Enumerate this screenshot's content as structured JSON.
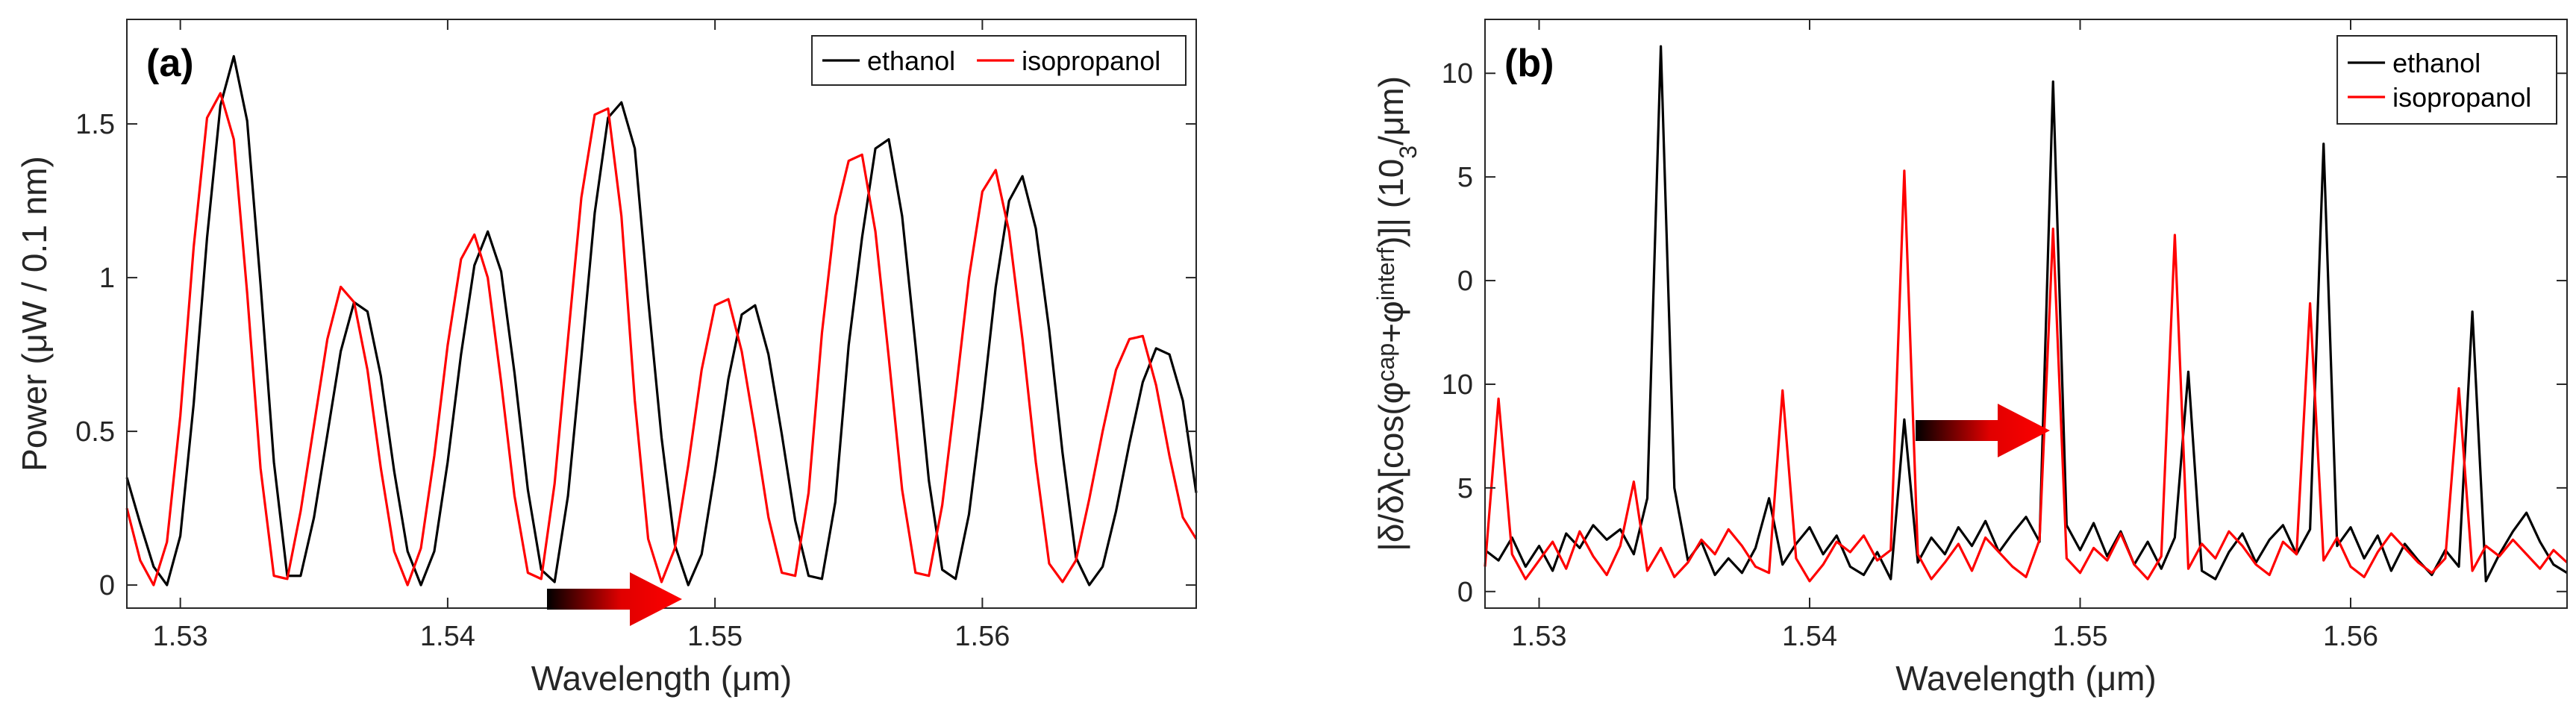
{
  "chart_data": [
    {
      "type": "line",
      "panel_label": "(a)",
      "xlabel": "Wavelength (μm)",
      "ylabel": "Power (μW / 0.1 nm)",
      "xlim": [
        1.528,
        1.568
      ],
      "ylim": [
        -0.075,
        1.84
      ],
      "xticks": [
        1.53,
        1.54,
        1.55,
        1.56
      ],
      "yticks": [
        0,
        0.5,
        1,
        1.5
      ],
      "legend": "upper right",
      "x": [
        1.528,
        1.5285,
        1.529,
        1.5295,
        1.53,
        1.5305,
        1.531,
        1.5315,
        1.532,
        1.5325,
        1.533,
        1.5335,
        1.534,
        1.5345,
        1.535,
        1.5355,
        1.536,
        1.5365,
        1.537,
        1.5375,
        1.538,
        1.5385,
        1.539,
        1.5395,
        1.54,
        1.5405,
        1.541,
        1.5415,
        1.542,
        1.5425,
        1.543,
        1.5435,
        1.544,
        1.5445,
        1.545,
        1.5455,
        1.546,
        1.5465,
        1.547,
        1.5475,
        1.548,
        1.5485,
        1.549,
        1.5495,
        1.55,
        1.5505,
        1.551,
        1.5515,
        1.552,
        1.5525,
        1.553,
        1.5535,
        1.554,
        1.5545,
        1.555,
        1.5555,
        1.556,
        1.5565,
        1.557,
        1.5575,
        1.558,
        1.5585,
        1.559,
        1.5595,
        1.56,
        1.5605,
        1.561,
        1.5615,
        1.562,
        1.5625,
        1.563,
        1.5635,
        1.564,
        1.5645,
        1.565,
        1.5655,
        1.566,
        1.5665,
        1.567,
        1.5675,
        1.568
      ],
      "series": [
        {
          "name": "ethanol",
          "color": "#000000",
          "values": [
            0.35,
            0.2,
            0.06,
            0,
            0.16,
            0.59,
            1.13,
            1.56,
            1.72,
            1.51,
            0.98,
            0.4,
            0.03,
            0.03,
            0.22,
            0.49,
            0.76,
            0.92,
            0.89,
            0.68,
            0.37,
            0.11,
            0,
            0.11,
            0.4,
            0.75,
            1.04,
            1.15,
            1.02,
            0.69,
            0.31,
            0.05,
            0.01,
            0.29,
            0.74,
            1.21,
            1.52,
            1.57,
            1.42,
            0.93,
            0.48,
            0.13,
            0,
            0.1,
            0.37,
            0.67,
            0.88,
            0.91,
            0.75,
            0.49,
            0.21,
            0.03,
            0.02,
            0.27,
            0.78,
            1.13,
            1.42,
            1.45,
            1.2,
            0.78,
            0.34,
            0.05,
            0.02,
            0.23,
            0.58,
            0.97,
            1.25,
            1.33,
            1.16,
            0.83,
            0.43,
            0.09,
            0,
            0.06,
            0.24,
            0.46,
            0.66,
            0.77,
            0.75,
            0.6,
            0.3
          ]
        },
        {
          "name": "isopropanol",
          "color": "#ff0000",
          "values": [
            0.25,
            0.08,
            0,
            0.14,
            0.55,
            1.1,
            1.52,
            1.6,
            1.45,
            0.95,
            0.38,
            0.03,
            0.02,
            0.24,
            0.52,
            0.8,
            0.97,
            0.92,
            0.7,
            0.38,
            0.11,
            0,
            0.12,
            0.42,
            0.78,
            1.06,
            1.14,
            1,
            0.66,
            0.29,
            0.04,
            0.02,
            0.33,
            0.8,
            1.26,
            1.53,
            1.55,
            1.2,
            0.6,
            0.15,
            0.01,
            0.12,
            0.39,
            0.7,
            0.91,
            0.93,
            0.76,
            0.5,
            0.22,
            0.04,
            0.03,
            0.3,
            0.82,
            1.2,
            1.38,
            1.4,
            1.15,
            0.74,
            0.31,
            0.04,
            0.03,
            0.26,
            0.62,
            1,
            1.28,
            1.35,
            1.15,
            0.8,
            0.4,
            0.07,
            0.01,
            0.08,
            0.28,
            0.5,
            0.7,
            0.8,
            0.81,
            0.65,
            0.42,
            0.22,
            0.15
          ]
        }
      ]
    },
    {
      "type": "line",
      "panel_label": "(b)",
      "xlabel": "Wavelength (μm)",
      "ylabel": [
        "|δ/δλ[cos(φ",
        "cap",
        "+φ",
        "interf",
        ")]| (10",
        "3",
        "/μm)"
      ],
      "xlim": [
        1.528,
        1.568
      ],
      "ylim": [
        -0.8,
        27.6
      ],
      "xticks": [
        1.53,
        1.54,
        1.55,
        1.56
      ],
      "yticks": [
        0,
        5,
        10,
        {
          "value": 15,
          "label": "0"
        },
        {
          "value": 20,
          "label": "5"
        },
        {
          "value": 25,
          "label": "10"
        }
      ],
      "legend": "upper right",
      "x": [
        1.528,
        1.5285,
        1.529,
        1.5295,
        1.53,
        1.5305,
        1.531,
        1.5315,
        1.532,
        1.5325,
        1.533,
        1.5335,
        1.534,
        1.5345,
        1.535,
        1.5355,
        1.536,
        1.5365,
        1.537,
        1.5375,
        1.538,
        1.5385,
        1.539,
        1.5395,
        1.54,
        1.5405,
        1.541,
        1.5415,
        1.542,
        1.5425,
        1.543,
        1.5435,
        1.544,
        1.5445,
        1.545,
        1.5455,
        1.546,
        1.5465,
        1.547,
        1.5475,
        1.548,
        1.5485,
        1.549,
        1.5495,
        1.55,
        1.5505,
        1.551,
        1.5515,
        1.552,
        1.5525,
        1.553,
        1.5535,
        1.554,
        1.5545,
        1.555,
        1.5555,
        1.556,
        1.5565,
        1.557,
        1.5575,
        1.558,
        1.5585,
        1.559,
        1.5595,
        1.56,
        1.5605,
        1.561,
        1.5615,
        1.562,
        1.5625,
        1.563,
        1.5635,
        1.564,
        1.5645,
        1.565,
        1.5655,
        1.566,
        1.5665,
        1.567,
        1.5675,
        1.568
      ],
      "series": [
        {
          "name": "ethanol",
          "color": "#000000",
          "values": [
            2,
            1.5,
            2.6,
            1.2,
            2.2,
            1,
            2.8,
            2.1,
            3.2,
            2.5,
            3,
            1.8,
            4.5,
            26.3,
            5,
            1.5,
            2.4,
            0.8,
            1.6,
            0.9,
            2.1,
            4.5,
            1.3,
            2.3,
            3.1,
            1.8,
            2.7,
            1.2,
            0.8,
            1.9,
            0.6,
            8.3,
            1.4,
            2.6,
            1.8,
            3.1,
            2.2,
            3.4,
            1.9,
            2.8,
            3.6,
            2.4,
            24.6,
            3.2,
            2,
            3.3,
            1.7,
            2.9,
            1.3,
            2.4,
            1.1,
            2.6,
            10.6,
            1,
            0.6,
            1.9,
            2.8,
            1.4,
            2.5,
            3.2,
            1.8,
            3,
            21.6,
            2.2,
            3.1,
            1.6,
            2.7,
            1,
            2.3,
            1.5,
            0.8,
            2,
            1.2,
            13.5,
            0.5,
            1.8,
            2.9,
            3.8,
            2.4,
            1.3,
            0.9
          ]
        },
        {
          "name": "isopropanol",
          "color": "#ff0000",
          "values": [
            1.2,
            9.3,
            1.8,
            0.6,
            1.5,
            2.4,
            1.1,
            2.9,
            1.7,
            0.8,
            2.2,
            5.3,
            1,
            2.1,
            0.7,
            1.4,
            2.5,
            1.8,
            3,
            2.2,
            1.2,
            0.9,
            9.7,
            1.6,
            0.5,
            1.3,
            2.4,
            1.9,
            2.7,
            1.5,
            2,
            20.3,
            1.8,
            0.6,
            1.4,
            2.3,
            1,
            2.6,
            1.9,
            1.2,
            0.7,
            2.5,
            17.5,
            1.6,
            0.9,
            2.1,
            1.5,
            2.8,
            1.3,
            0.6,
            1.7,
            17.2,
            1.1,
            2.3,
            1.6,
            2.9,
            2.2,
            1.3,
            0.8,
            2.4,
            1.8,
            13.9,
            1.5,
            2.6,
            1.2,
            0.7,
            1.9,
            2.8,
            2.1,
            1.4,
            0.9,
            1.6,
            9.8,
            1,
            2.2,
            1.7,
            2.5,
            1.8,
            1.1,
            2,
            1.4
          ]
        }
      ]
    }
  ]
}
